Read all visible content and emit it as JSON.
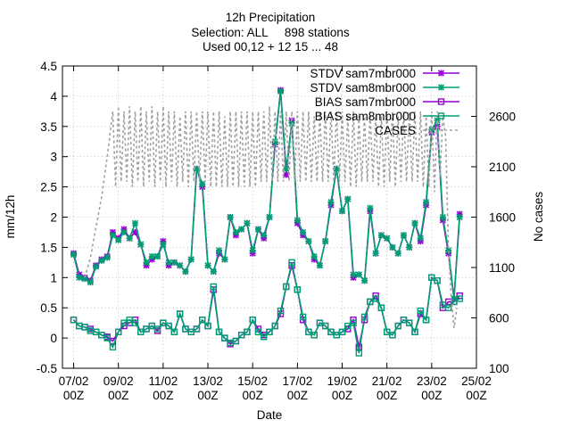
{
  "chart_data": {
    "type": "line",
    "title": "12h Precipitation",
    "subtitle_lines": [
      "Selection: ALL     898 stations",
      "Used 00,12 + 12 15 ... 48"
    ],
    "xlabel": "Date",
    "ylabel": "mm/12h",
    "y2label": "No cases",
    "x_unit": "days since 07/02 00Z",
    "xlim": [
      -0.5,
      18
    ],
    "ylim": [
      -0.5,
      4.5
    ],
    "y2lim": [
      100,
      3100
    ],
    "grid": true,
    "legend_position": "top-right",
    "x_ticks": [
      {
        "x": 0,
        "line1": "07/02",
        "line2": "00Z"
      },
      {
        "x": 2,
        "line1": "09/02",
        "line2": "00Z"
      },
      {
        "x": 4,
        "line1": "11/02",
        "line2": "00Z"
      },
      {
        "x": 6,
        "line1": "13/02",
        "line2": "00Z"
      },
      {
        "x": 8,
        "line1": "15/02",
        "line2": "00Z"
      },
      {
        "x": 10,
        "line1": "17/02",
        "line2": "00Z"
      },
      {
        "x": 12,
        "line1": "19/02",
        "line2": "00Z"
      },
      {
        "x": 14,
        "line1": "21/02",
        "line2": "00Z"
      },
      {
        "x": 16,
        "line1": "23/02",
        "line2": "00Z"
      },
      {
        "x": 18,
        "line1": "25/02",
        "line2": "00Z"
      }
    ],
    "y_ticks": [
      {
        "v": -0.5,
        "label": "-0.5"
      },
      {
        "v": 0,
        "label": "0"
      },
      {
        "v": 0.5,
        "label": "0.5"
      },
      {
        "v": 1,
        "label": "1"
      },
      {
        "v": 1.5,
        "label": "1.5"
      },
      {
        "v": 2,
        "label": "2"
      },
      {
        "v": 2.5,
        "label": "2.5"
      },
      {
        "v": 3,
        "label": "3"
      },
      {
        "v": 3.5,
        "label": "3.5"
      },
      {
        "v": 4,
        "label": "4"
      },
      {
        "v": 4.5,
        "label": "4.5"
      }
    ],
    "y2_ticks": [
      {
        "v": 100,
        "label": "100"
      },
      {
        "v": 600,
        "label": "600"
      },
      {
        "v": 1100,
        "label": "1100"
      },
      {
        "v": 1600,
        "label": "1600"
      },
      {
        "v": 2100,
        "label": "2100"
      },
      {
        "v": 2600,
        "label": "2600"
      }
    ],
    "series": [
      {
        "name": "STDV sam7mbr000",
        "axis": "y1",
        "color": "#9400d3",
        "marker": "star",
        "dash": "",
        "x": [
          0.0,
          0.25,
          0.5,
          0.75,
          1.0,
          1.25,
          1.5,
          1.75,
          2.0,
          2.25,
          2.5,
          2.75,
          3.0,
          3.25,
          3.5,
          3.75,
          4.0,
          4.25,
          4.5,
          4.75,
          5.0,
          5.25,
          5.5,
          5.75,
          6.0,
          6.25,
          6.5,
          6.75,
          7.0,
          7.25,
          7.5,
          7.75,
          8.0,
          8.25,
          8.5,
          8.75,
          9.0,
          9.25,
          9.5,
          9.75,
          10.0,
          10.25,
          10.5,
          10.75,
          11.0,
          11.25,
          11.5,
          11.75,
          12.0,
          12.25,
          12.5,
          12.75,
          13.0,
          13.25,
          13.5,
          13.75,
          14.0,
          14.25,
          14.5,
          14.75,
          15.0,
          15.25,
          15.5,
          15.75,
          16.0,
          16.25,
          16.5,
          16.75,
          17.0,
          17.25
        ],
        "y": [
          1.4,
          1.05,
          1.0,
          0.95,
          1.2,
          1.3,
          1.35,
          1.75,
          1.65,
          1.8,
          1.65,
          1.75,
          1.55,
          1.2,
          1.3,
          1.35,
          1.6,
          1.2,
          1.25,
          1.2,
          1.1,
          1.3,
          2.8,
          2.5,
          1.2,
          1.1,
          1.4,
          1.3,
          2.0,
          1.7,
          1.8,
          1.9,
          1.4,
          1.8,
          1.65,
          2.0,
          3.2,
          4.1,
          2.7,
          3.6,
          1.9,
          1.7,
          1.6,
          1.3,
          1.2,
          1.6,
          2.2,
          2.8,
          2.1,
          2.3,
          1.0,
          1.05,
          0.95,
          2.1,
          1.4,
          1.7,
          1.65,
          1.5,
          1.4,
          1.7,
          1.5,
          1.9,
          1.6,
          2.2,
          3.4,
          3.5,
          1.95,
          1.4,
          0.65,
          2.05
        ]
      },
      {
        "name": "STDV sam8mbr000",
        "axis": "y1",
        "color": "#009e73",
        "marker": "star",
        "dash": "",
        "x": [
          0.0,
          0.25,
          0.5,
          0.75,
          1.0,
          1.25,
          1.5,
          1.75,
          2.0,
          2.25,
          2.5,
          2.75,
          3.0,
          3.25,
          3.5,
          3.75,
          4.0,
          4.25,
          4.5,
          4.75,
          5.0,
          5.25,
          5.5,
          5.75,
          6.0,
          6.25,
          6.5,
          6.75,
          7.0,
          7.25,
          7.5,
          7.75,
          8.0,
          8.25,
          8.5,
          8.75,
          9.0,
          9.25,
          9.5,
          9.75,
          10.0,
          10.25,
          10.5,
          10.75,
          11.0,
          11.25,
          11.5,
          11.75,
          12.0,
          12.25,
          12.5,
          12.75,
          13.0,
          13.25,
          13.5,
          13.75,
          14.0,
          14.25,
          14.5,
          14.75,
          15.0,
          15.25,
          15.5,
          15.75,
          16.0,
          16.25,
          16.5,
          16.75,
          17.0,
          17.25
        ],
        "y": [
          1.38,
          1.0,
          0.98,
          0.92,
          1.18,
          1.28,
          1.33,
          1.7,
          1.62,
          1.75,
          1.65,
          1.9,
          1.55,
          1.25,
          1.35,
          1.35,
          1.55,
          1.25,
          1.25,
          1.2,
          1.1,
          1.3,
          2.8,
          2.55,
          1.2,
          1.1,
          1.45,
          1.3,
          2.0,
          1.75,
          1.8,
          1.9,
          1.45,
          1.8,
          1.7,
          2.0,
          3.25,
          4.08,
          2.8,
          3.55,
          1.95,
          1.75,
          1.6,
          1.35,
          1.2,
          1.6,
          2.25,
          2.8,
          2.1,
          2.3,
          1.05,
          1.05,
          0.95,
          2.15,
          1.4,
          1.7,
          1.65,
          1.5,
          1.4,
          1.7,
          1.5,
          1.9,
          1.65,
          2.25,
          3.45,
          3.6,
          2.0,
          1.45,
          0.65,
          2.0
        ]
      },
      {
        "name": "BIAS sam7mbr000",
        "axis": "y1",
        "color": "#9400d3",
        "marker": "square",
        "dash": "",
        "x": [
          0.0,
          0.25,
          0.5,
          0.75,
          1.0,
          1.25,
          1.5,
          1.75,
          2.0,
          2.25,
          2.5,
          2.75,
          3.0,
          3.25,
          3.5,
          3.75,
          4.0,
          4.25,
          4.5,
          4.75,
          5.0,
          5.25,
          5.5,
          5.75,
          6.0,
          6.25,
          6.5,
          6.75,
          7.0,
          7.25,
          7.5,
          7.75,
          8.0,
          8.25,
          8.5,
          8.75,
          9.0,
          9.25,
          9.5,
          9.75,
          10.0,
          10.25,
          10.5,
          10.75,
          11.0,
          11.25,
          11.5,
          11.75,
          12.0,
          12.25,
          12.5,
          12.75,
          13.0,
          13.25,
          13.5,
          13.75,
          14.0,
          14.25,
          14.5,
          14.75,
          15.0,
          15.25,
          15.5,
          15.75,
          16.0,
          16.25,
          16.5,
          16.75,
          17.0,
          17.25
        ],
        "y": [
          0.3,
          0.2,
          0.18,
          0.15,
          0.1,
          0.05,
          0.02,
          -0.05,
          0.1,
          0.2,
          0.25,
          0.3,
          0.1,
          0.15,
          0.2,
          0.12,
          0.25,
          0.2,
          0.1,
          0.4,
          0.15,
          0.1,
          0.15,
          0.3,
          0.2,
          0.8,
          0.1,
          0.0,
          -0.1,
          -0.05,
          0.05,
          0.1,
          0.3,
          0.15,
          0.05,
          0.1,
          0.2,
          0.4,
          0.85,
          1.2,
          0.8,
          0.3,
          0.1,
          0.05,
          0.25,
          0.2,
          0.1,
          0.05,
          0.1,
          0.15,
          0.3,
          -0.15,
          0.3,
          0.6,
          0.7,
          0.5,
          0.1,
          0.05,
          0.2,
          0.3,
          0.25,
          0.1,
          0.4,
          0.3,
          1.0,
          0.95,
          0.5,
          0.6,
          0.6,
          0.7
        ]
      },
      {
        "name": "BIAS sam8mbr000",
        "axis": "y1",
        "color": "#009e73",
        "marker": "square",
        "dash": "",
        "x": [
          0.0,
          0.25,
          0.5,
          0.75,
          1.0,
          1.25,
          1.5,
          1.75,
          2.0,
          2.25,
          2.5,
          2.75,
          3.0,
          3.25,
          3.5,
          3.75,
          4.0,
          4.25,
          4.5,
          4.75,
          5.0,
          5.25,
          5.5,
          5.75,
          6.0,
          6.25,
          6.5,
          6.75,
          7.0,
          7.25,
          7.5,
          7.75,
          8.0,
          8.25,
          8.5,
          8.75,
          9.0,
          9.25,
          9.5,
          9.75,
          10.0,
          10.25,
          10.5,
          10.75,
          11.0,
          11.25,
          11.5,
          11.75,
          12.0,
          12.25,
          12.5,
          12.75,
          13.0,
          13.25,
          13.5,
          13.75,
          14.0,
          14.25,
          14.5,
          14.75,
          15.0,
          15.25,
          15.5,
          15.75,
          16.0,
          16.25,
          16.5,
          16.75,
          17.0,
          17.25
        ],
        "y": [
          0.3,
          0.2,
          0.18,
          0.12,
          0.1,
          0.05,
          0.0,
          -0.15,
          0.1,
          0.25,
          0.3,
          0.25,
          0.1,
          0.15,
          0.2,
          0.15,
          0.25,
          0.2,
          0.1,
          0.4,
          0.15,
          0.1,
          0.15,
          0.3,
          0.2,
          0.85,
          0.1,
          0.0,
          -0.08,
          -0.05,
          0.05,
          0.1,
          0.3,
          0.1,
          0.02,
          0.1,
          0.2,
          0.45,
          0.85,
          1.25,
          0.8,
          0.35,
          0.1,
          0.05,
          0.25,
          0.2,
          0.1,
          0.05,
          0.1,
          0.2,
          0.25,
          -0.25,
          0.35,
          0.6,
          0.65,
          0.5,
          0.1,
          0.05,
          0.2,
          0.3,
          0.25,
          0.1,
          0.45,
          0.3,
          1.0,
          0.95,
          0.55,
          0.5,
          0.6,
          0.65
        ]
      },
      {
        "name": "CASES",
        "axis": "y2",
        "color": "#a0a0a0",
        "marker": "",
        "dash": "3 3",
        "x": [
          0.5,
          0.75,
          1.0,
          1.25,
          1.5,
          1.75,
          1.875,
          2.0,
          2.125,
          2.25,
          2.375,
          2.5,
          2.625,
          2.75,
          2.875,
          3.0,
          3.125,
          3.25,
          3.375,
          3.5,
          3.625,
          3.75,
          3.875,
          4.0,
          4.125,
          4.25,
          4.375,
          4.5,
          4.625,
          4.75,
          4.875,
          5.0,
          5.125,
          5.25,
          5.375,
          5.5,
          5.625,
          5.75,
          5.875,
          6.0,
          6.125,
          6.25,
          6.375,
          6.5,
          6.625,
          6.75,
          6.875,
          7.0,
          7.125,
          7.25,
          7.375,
          7.5,
          7.625,
          7.75,
          7.875,
          8.0,
          8.125,
          8.25,
          8.375,
          8.5,
          8.625,
          8.75,
          8.875,
          9.0,
          9.125,
          9.25,
          9.375,
          9.5,
          9.625,
          9.75,
          9.875,
          10.0,
          10.125,
          10.25,
          10.375,
          10.5,
          10.625,
          10.75,
          10.875,
          11.0,
          11.125,
          11.25,
          11.375,
          11.5,
          11.625,
          11.75,
          11.875,
          12.0,
          12.125,
          12.25,
          12.375,
          12.5,
          12.625,
          12.75,
          12.875,
          13.0,
          13.125,
          13.25,
          13.375,
          13.5,
          13.625,
          13.75,
          13.875,
          14.0,
          14.125,
          14.25,
          14.375,
          14.5,
          14.625,
          14.75,
          14.875,
          15.0,
          15.125,
          15.25,
          15.375,
          15.5,
          15.625,
          15.75,
          15.875,
          16.0,
          16.125,
          16.25,
          16.375,
          16.5,
          16.625,
          16.75,
          16.875,
          17.0,
          17.125
        ],
        "y": [
          1000,
          1200,
          1500,
          1800,
          2200,
          2650,
          1900,
          2700,
          1950,
          2650,
          1950,
          2700,
          1900,
          2650,
          1950,
          2700,
          1900,
          2650,
          1950,
          2700,
          1900,
          2650,
          1950,
          2700,
          1900,
          2650,
          1950,
          2650,
          1900,
          2600,
          1950,
          2650,
          1900,
          2650,
          1950,
          2650,
          1950,
          2650,
          1950,
          2650,
          1900,
          2650,
          1900,
          2650,
          1900,
          2600,
          1900,
          2650,
          1900,
          2650,
          1900,
          2650,
          1900,
          2650,
          1900,
          2650,
          1900,
          2650,
          1950,
          2650,
          1950,
          2700,
          1950,
          2650,
          1950,
          2650,
          1950,
          2650,
          1950,
          2650,
          1950,
          2650,
          1950,
          2650,
          1950,
          2650,
          1950,
          2600,
          1950,
          2650,
          1950,
          2650,
          1950,
          2650,
          1950,
          2650,
          1950,
          2650,
          1950,
          2600,
          1900,
          2650,
          1900,
          2600,
          1950,
          2600,
          1950,
          2650,
          1950,
          2600,
          1900,
          2600,
          1900,
          2650,
          1950,
          2650,
          1900,
          2600,
          1950,
          2650,
          1950,
          2650,
          1950,
          2650,
          1950,
          2650,
          1900,
          2600,
          1900,
          2650,
          1850,
          2650,
          2000,
          2600,
          2400,
          1300,
          800,
          500,
          700
        ]
      }
    ]
  }
}
